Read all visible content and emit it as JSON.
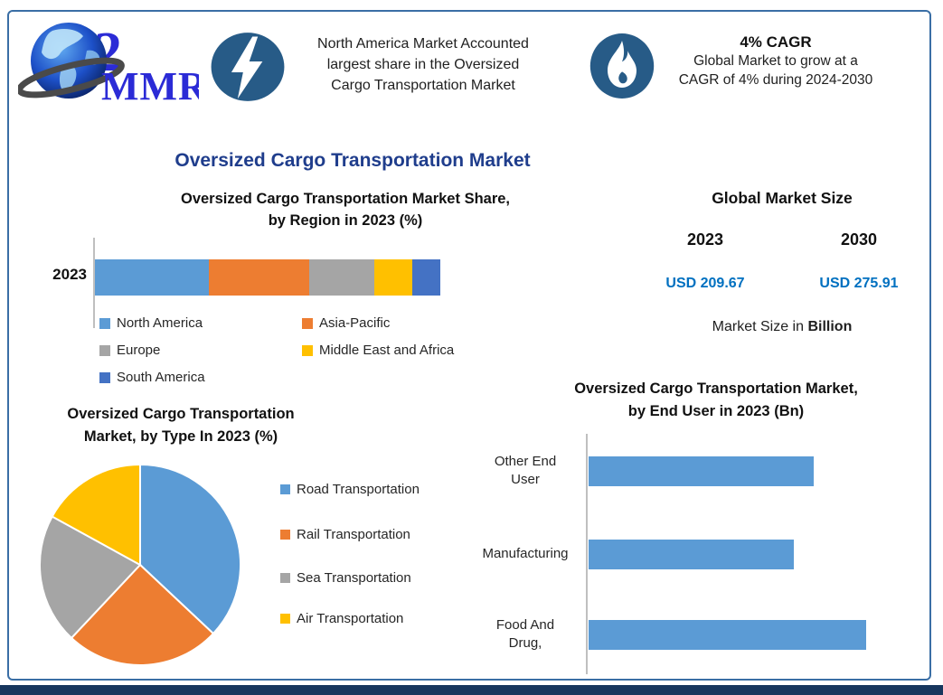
{
  "brand": {
    "logo_text": "MMR"
  },
  "header": {
    "highlight": {
      "lines": [
        "North America Market Accounted",
        "largest share in the Oversized",
        "Cargo Transportation Market"
      ]
    },
    "cagr": {
      "headline": "4% CAGR",
      "lines": [
        "Global Market to grow at a",
        "CAGR of 4% during 2024-2030"
      ]
    }
  },
  "main_title": "Oversized Cargo Transportation Market",
  "market_size": {
    "title": "Global Market Size",
    "years": [
      "2023",
      "2030"
    ],
    "values": [
      "USD 209.67",
      "USD 275.91"
    ],
    "footnote_regular": "Market Size in ",
    "footnote_bold": "Billion"
  },
  "colors": {
    "accent_navy": "#1F3D8C",
    "usd_blue": "#0070C0",
    "badge_blue": "#275B87",
    "frame_border": "#3A6EA5",
    "bottom_bar": "#17365D",
    "axis_gray": "#BFBFBF"
  },
  "chart_data": [
    {
      "id": "region-share",
      "type": "bar",
      "subtype": "stacked-horizontal",
      "title": "Oversized Cargo Transportation Market Share, by Region in 2023 (%)",
      "title_lines": [
        "Oversized Cargo Transportation Market Share,",
        "by Region in 2023 (%)"
      ],
      "categories": [
        "2023"
      ],
      "series": [
        {
          "name": "North America",
          "value": 33,
          "color": "#5B9BD5"
        },
        {
          "name": "Asia-Pacific",
          "value": 29,
          "color": "#ED7D31"
        },
        {
          "name": "Europe",
          "value": 19,
          "color": "#A5A5A5"
        },
        {
          "name": "Middle East and Africa",
          "value": 11,
          "color": "#FFC000"
        },
        {
          "name": "South America",
          "value": 8,
          "color": "#4472C4"
        }
      ],
      "units": "%"
    },
    {
      "id": "by-type",
      "type": "pie",
      "title": "Oversized Cargo Transportation Market, by Type In 2023 (%)",
      "title_lines": [
        "Oversized Cargo Transportation",
        "Market, by Type In 2023 (%)"
      ],
      "start_angle_deg": 0,
      "slices": [
        {
          "name": "Road Transportation",
          "value": 37,
          "color": "#5B9BD5"
        },
        {
          "name": "Rail Transportation",
          "value": 25,
          "color": "#ED7D31"
        },
        {
          "name": "Sea Transportation",
          "value": 21,
          "color": "#A5A5A5"
        },
        {
          "name": "Air Transportation",
          "value": 17,
          "color": "#FFC000"
        }
      ],
      "units": "%"
    },
    {
      "id": "by-end-user",
      "type": "bar",
      "subtype": "horizontal",
      "title": "Oversized Cargo Transportation Market, by End User in 2023 (Bn)",
      "title_lines": [
        "Oversized Cargo Transportation Market,",
        "by End User in 2023 (Bn)"
      ],
      "categories": [
        "Other End User",
        "Manufacturing",
        "Food And Drug,"
      ],
      "category_lines": [
        [
          "Other End",
          "User"
        ],
        [
          "Manufacturing"
        ],
        [
          "Food And",
          "Drug,"
        ]
      ],
      "values": [
        0.81,
        0.74,
        1.0
      ],
      "bar_color": "#5B9BD5",
      "units": "Bn (axis values not labeled; lengths relative)"
    }
  ]
}
